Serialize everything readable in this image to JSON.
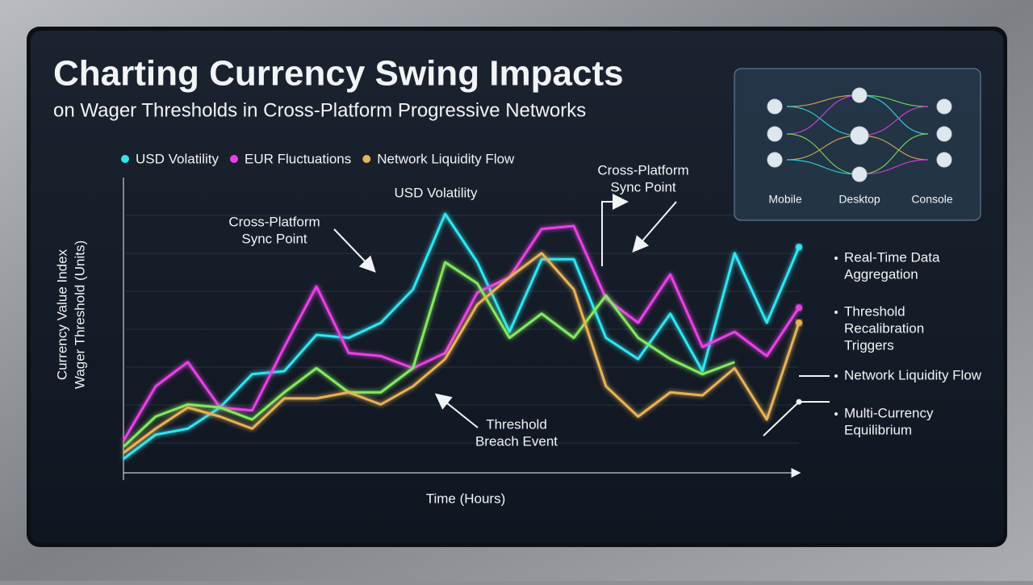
{
  "chart_data": {
    "type": "line",
    "title": "Charting Currency Swing Impacts",
    "subtitle": "on Wager Thresholds in Cross-Platform Progressive Networks",
    "x_label": "Time (Hours)",
    "y_label": [
      "Currency Value Index",
      "Wager Threshold (Units)"
    ],
    "categories": [
      null,
      null,
      null,
      null,
      null,
      null,
      null,
      null,
      null,
      null,
      null,
      null,
      null,
      null,
      null,
      null,
      null,
      null,
      null,
      null,
      null,
      null
    ],
    "ylim": [
      0,
      100
    ],
    "series": [
      {
        "name": "USD Volatility",
        "color": "#2ee6f2",
        "values": [
          7,
          15,
          17,
          24,
          35,
          36,
          48,
          47,
          52,
          63,
          88,
          72,
          49,
          73,
          73,
          47,
          40,
          55,
          36,
          75,
          52,
          77
        ]
      },
      {
        "name": "EUR Fluctuations",
        "color": "#ea3fe8",
        "values": [
          13,
          31,
          39,
          24,
          23,
          44,
          64,
          42,
          41,
          37,
          42,
          62,
          67,
          83,
          84,
          60,
          52,
          68,
          44,
          49,
          41,
          57
        ]
      },
      {
        "color": "#82ea5e",
        "values": [
          11,
          21,
          25,
          24,
          20,
          29,
          37,
          29,
          29,
          37,
          72,
          65,
          47,
          55,
          47,
          61,
          47,
          40,
          35,
          39,
          null,
          null
        ]
      },
      {
        "name": "Network Liquidity Flow",
        "color": "#e8b256",
        "values": [
          9,
          17,
          24,
          21,
          17,
          27,
          27,
          29,
          25,
          31,
          40,
          58,
          67,
          75,
          63,
          31,
          21,
          29,
          28,
          37,
          20,
          52
        ]
      }
    ],
    "annotations": [
      [
        "USD Volatility"
      ],
      [
        "Cross-Platform",
        "Sync Point"
      ],
      [
        "Cross-Platform",
        "Sync Point"
      ],
      [
        "Threshold",
        "Breach Event"
      ]
    ]
  },
  "side_notes": [
    [
      "Real-Time Data",
      "Aggregation"
    ],
    [
      "Threshold",
      "Recalibration",
      "Triggers"
    ],
    [
      "Network Liquidity Flow"
    ],
    [
      "Multi-Currency",
      "Equilibrium"
    ]
  ],
  "platforms": [
    "Mobile",
    "Desktop",
    "Console"
  ]
}
